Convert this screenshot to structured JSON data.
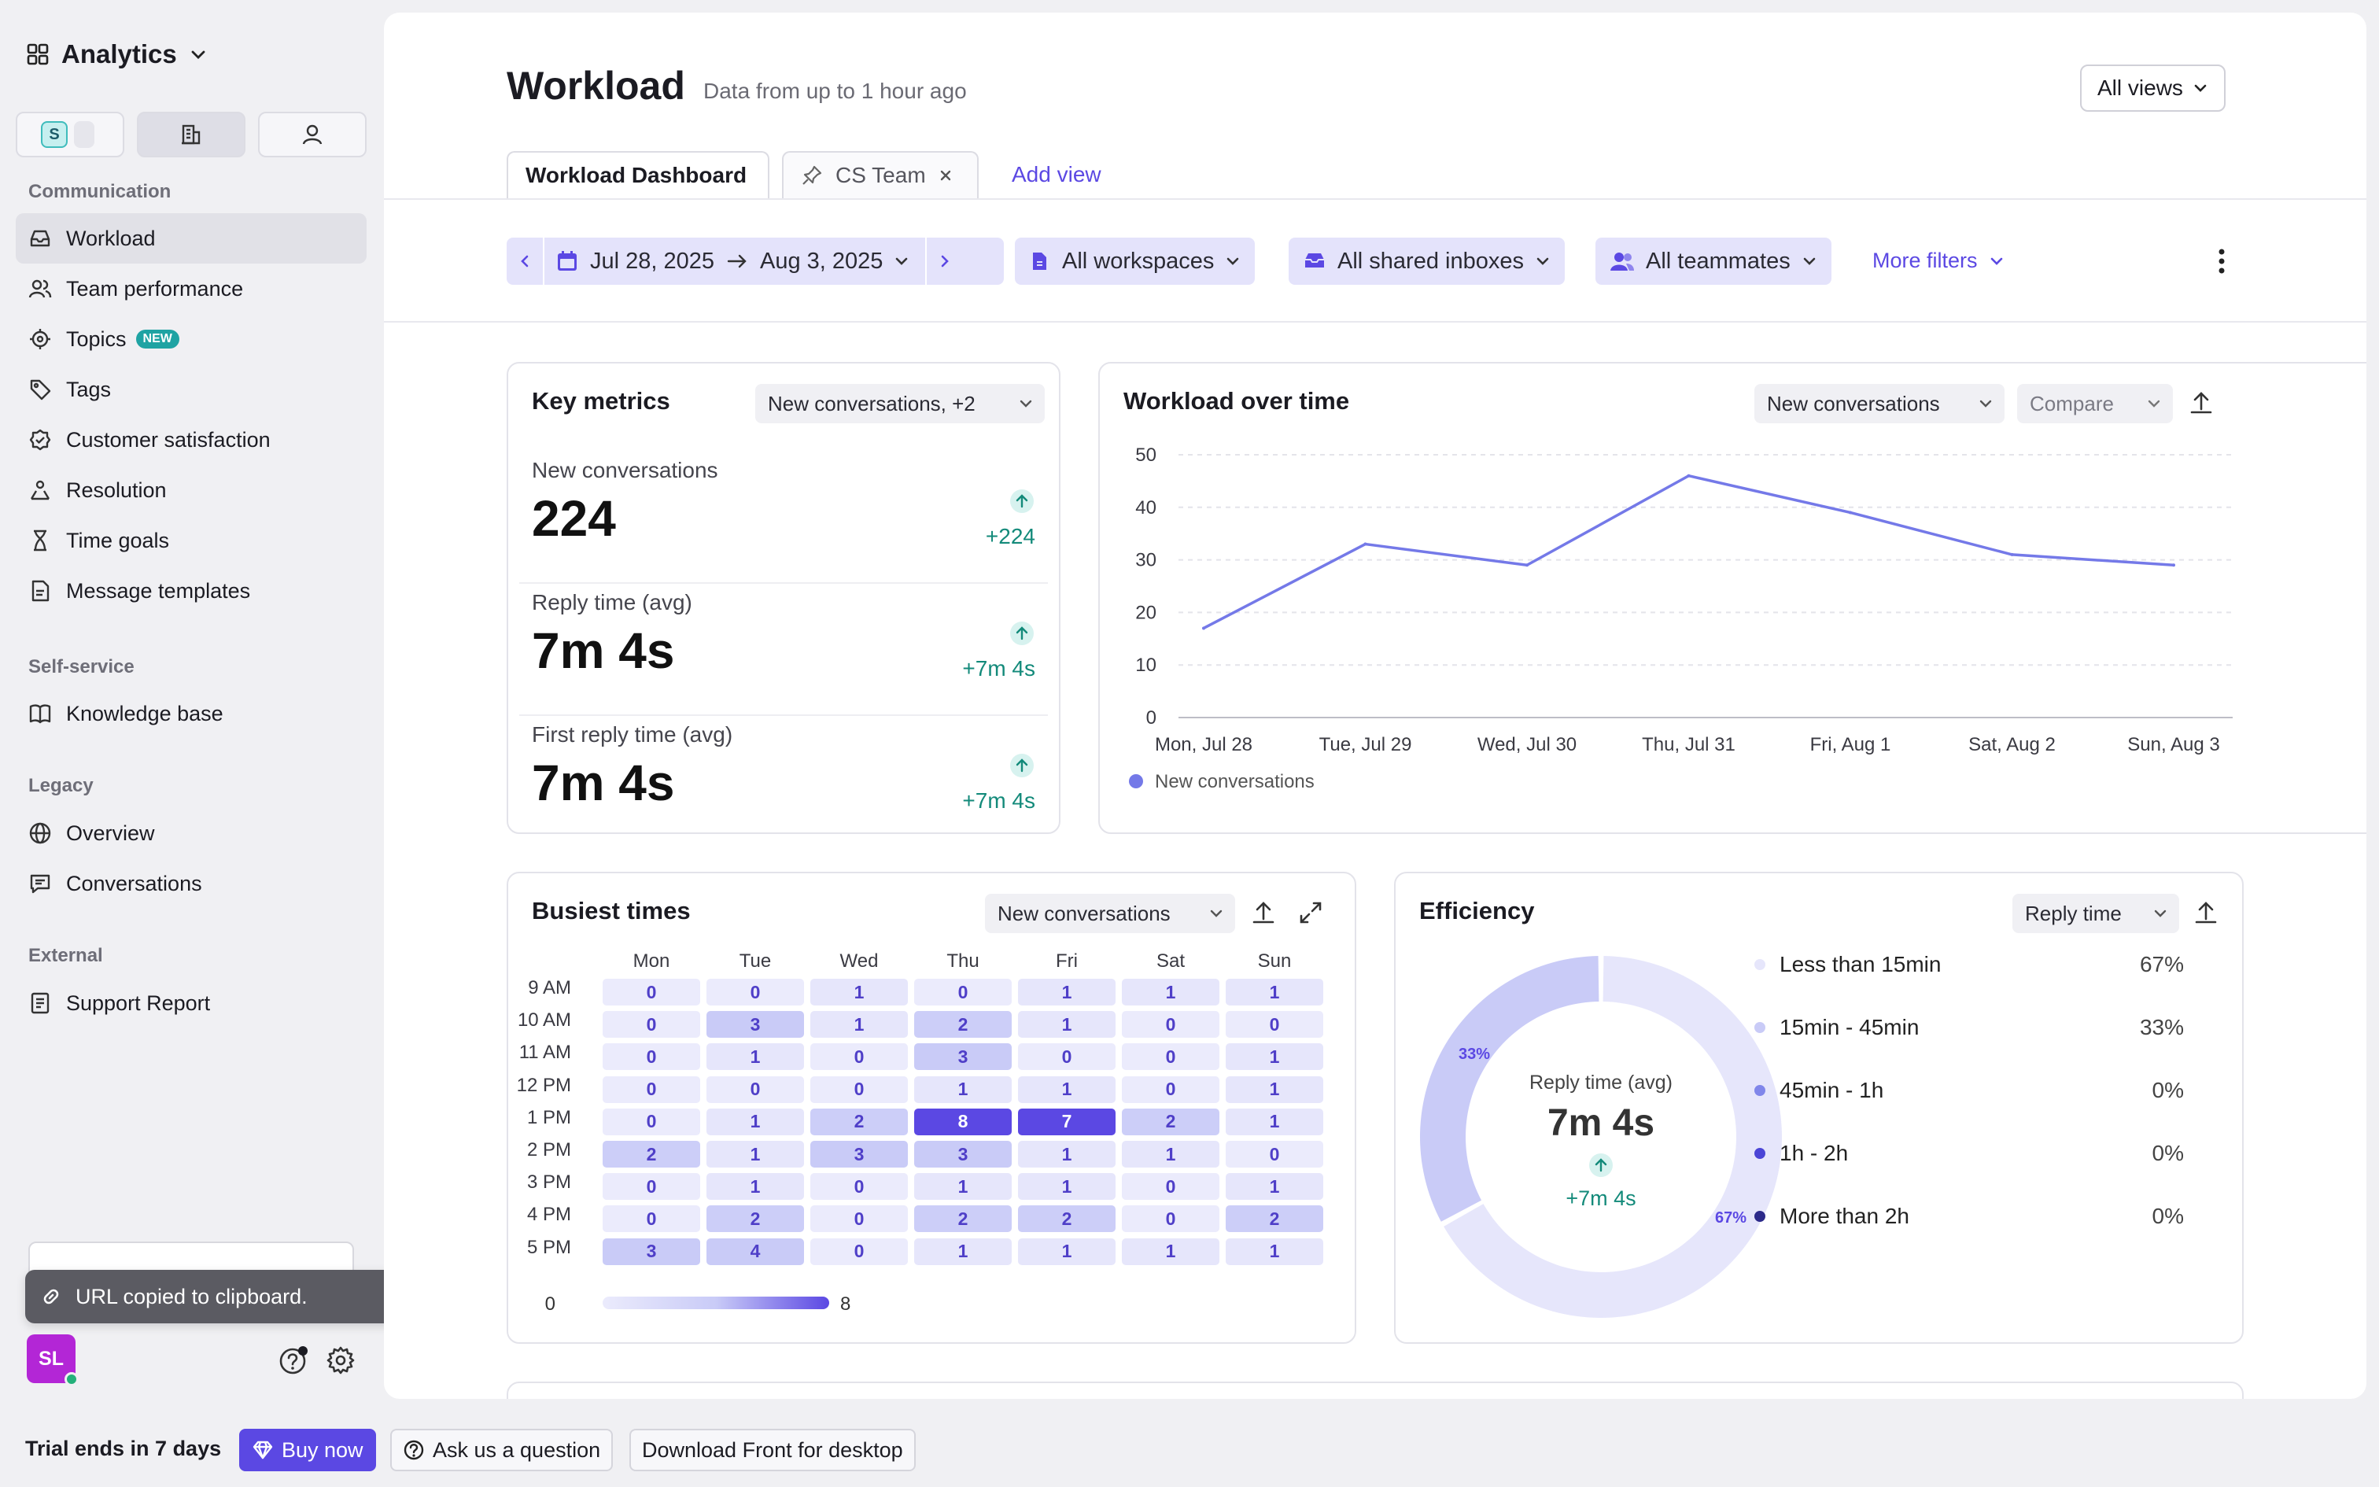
{
  "app": {
    "title": "Analytics",
    "workspace_badge": "S"
  },
  "sidebar": {
    "sections": [
      {
        "label": "Communication",
        "items": [
          {
            "label": "Workload",
            "icon": "inbox-icon",
            "active": true
          },
          {
            "label": "Team performance",
            "icon": "people-icon"
          },
          {
            "label": "Topics",
            "icon": "target-icon",
            "badge": "NEW"
          },
          {
            "label": "Tags",
            "icon": "tag-icon"
          },
          {
            "label": "Customer satisfaction",
            "icon": "badge-check-icon"
          },
          {
            "label": "Resolution",
            "icon": "resolution-icon"
          },
          {
            "label": "Time goals",
            "icon": "hourglass-icon"
          },
          {
            "label": "Message templates",
            "icon": "template-icon"
          }
        ]
      },
      {
        "label": "Self-service",
        "items": [
          {
            "label": "Knowledge base",
            "icon": "book-icon"
          }
        ]
      },
      {
        "label": "Legacy",
        "items": [
          {
            "label": "Overview",
            "icon": "globe-icon"
          },
          {
            "label": "Conversations",
            "icon": "message-icon"
          }
        ]
      },
      {
        "label": "External",
        "items": [
          {
            "label": "Support Report",
            "icon": "report-icon"
          }
        ]
      }
    ],
    "toast": "URL copied to clipboard.",
    "avatar_initials": "SL"
  },
  "bottom_bar": {
    "trial": "Trial ends in 7 days",
    "buy": "Buy now",
    "ask": "Ask us a question",
    "download": "Download Front for desktop"
  },
  "header": {
    "title": "Workload",
    "subtitle": "Data from up to 1 hour ago",
    "views_button": "All views"
  },
  "tabs": {
    "dashboard": "Workload Dashboard",
    "cs_team": "CS Team",
    "add_view": "Add view"
  },
  "filters": {
    "date_start": "Jul 28, 2025",
    "date_end": "Aug 3, 2025",
    "workspaces": "All workspaces",
    "inboxes": "All shared inboxes",
    "teammates": "All teammates",
    "more": "More filters"
  },
  "key_metrics": {
    "title": "Key metrics",
    "selector": "New conversations, +2",
    "metrics": [
      {
        "label": "New conversations",
        "value": "224",
        "delta": "+224"
      },
      {
        "label": "Reply time (avg)",
        "value": "7m 4s",
        "delta": "+7m 4s"
      },
      {
        "label": "First reply time (avg)",
        "value": "7m 4s",
        "delta": "+7m 4s"
      }
    ]
  },
  "workload_chart": {
    "title": "Workload over time",
    "metric_select": "New conversations",
    "compare_select": "Compare"
  },
  "chart_data": {
    "type": "line",
    "categories": [
      "Mon, Jul 28",
      "Tue, Jul 29",
      "Wed, Jul 30",
      "Thu, Jul 31",
      "Fri, Aug 1",
      "Sat, Aug 2",
      "Sun, Aug 3"
    ],
    "series": [
      {
        "name": "New conversations",
        "values": [
          17,
          33,
          29,
          46,
          39,
          31,
          29
        ],
        "color": "#7479e8"
      }
    ],
    "yticks": [
      "0",
      "10",
      "20",
      "30",
      "40",
      "50"
    ],
    "ylim": [
      0,
      50
    ],
    "grid": true,
    "legend_position": "bottom-left"
  },
  "busiest_times": {
    "title": "Busiest times",
    "metric_select": "New conversations",
    "days": [
      "Mon",
      "Tue",
      "Wed",
      "Thu",
      "Fri",
      "Sat",
      "Sun"
    ],
    "hours": [
      "9 AM",
      "10 AM",
      "11 AM",
      "12 PM",
      "1 PM",
      "2 PM",
      "3 PM",
      "4 PM",
      "5 PM"
    ],
    "values": [
      [
        0,
        0,
        1,
        0,
        1,
        1,
        1
      ],
      [
        0,
        3,
        1,
        2,
        1,
        0,
        0
      ],
      [
        0,
        1,
        0,
        3,
        0,
        0,
        1
      ],
      [
        0,
        0,
        0,
        1,
        1,
        0,
        1
      ],
      [
        0,
        1,
        2,
        8,
        7,
        2,
        1
      ],
      [
        2,
        1,
        3,
        3,
        1,
        1,
        0
      ],
      [
        0,
        1,
        0,
        1,
        1,
        0,
        1
      ],
      [
        0,
        2,
        0,
        2,
        2,
        0,
        2
      ],
      [
        3,
        4,
        0,
        1,
        1,
        1,
        1
      ]
    ],
    "scale_min": "0",
    "scale_max": "8"
  },
  "efficiency": {
    "title": "Efficiency",
    "metric_select": "Reply time",
    "center_label": "Reply time (avg)",
    "center_value": "7m 4s",
    "center_delta": "+7m 4s",
    "donut_labels": [
      "33%",
      "67%"
    ],
    "buckets": [
      {
        "label": "Less than 15min",
        "pct": "67%",
        "value": 67,
        "color": "#e6e6fb"
      },
      {
        "label": "15min - 45min",
        "pct": "33%",
        "value": 33,
        "color": "#c9cbf7"
      },
      {
        "label": "45min - 1h",
        "pct": "0%",
        "value": 0,
        "color": "#8086ea"
      },
      {
        "label": "1h - 2h",
        "pct": "0%",
        "value": 0,
        "color": "#4b45d6"
      },
      {
        "label": "More than 2h",
        "pct": "0%",
        "value": 0,
        "color": "#2c2a8a"
      }
    ]
  }
}
